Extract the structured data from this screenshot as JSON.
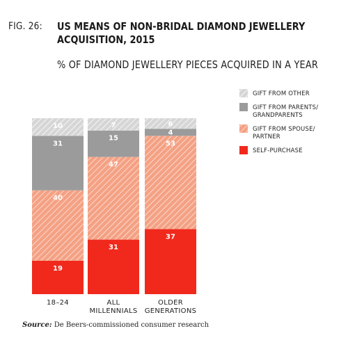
{
  "figure": {
    "fig_label": "FIG. 26:",
    "title": "US MEANS OF NON-BRIDAL DIAMOND JEWELLERY\nACQUISITION, 2015",
    "subtitle": "% OF DIAMOND JEWELLERY PIECES ACQUIRED IN A YEAR",
    "source_label": "Source:",
    "source_text": "De Beers-commissioned consumer research"
  },
  "chart_data": {
    "type": "bar",
    "stacked": true,
    "categories": [
      [
        "18–24"
      ],
      [
        "ALL",
        "MILLENNIALS"
      ],
      [
        "OLDER",
        "GENERATIONS"
      ]
    ],
    "series": [
      {
        "name": "SELF-PURCHASE",
        "label_lines": [
          "SELF-PURCHASE"
        ],
        "values": [
          19,
          31,
          37
        ],
        "color": "#f0291c",
        "pattern": "solid"
      },
      {
        "name": "GIFT FROM SPOUSE/ PARTNER",
        "label_lines": [
          "GIFT FROM SPOUSE/",
          "PARTNER"
        ],
        "values": [
          40,
          47,
          53
        ],
        "color": "#f4a184",
        "pattern": "hatch-orange"
      },
      {
        "name": "GIFT FROM PARENTS/ GRANDPARENTS",
        "label_lines": [
          "GIFT FROM PARENTS/",
          "GRANDPARENTS"
        ],
        "values": [
          31,
          15,
          4
        ],
        "color": "#9b9b9b",
        "pattern": "solid"
      },
      {
        "name": "GIFT FROM OTHER",
        "label_lines": [
          "GIFT FROM OTHER"
        ],
        "values": [
          10,
          7,
          6
        ],
        "color": "#cfcfcf",
        "pattern": "hatch-gray"
      }
    ],
    "ylim": [
      0,
      100
    ],
    "legend_position": "right",
    "grid": false
  }
}
